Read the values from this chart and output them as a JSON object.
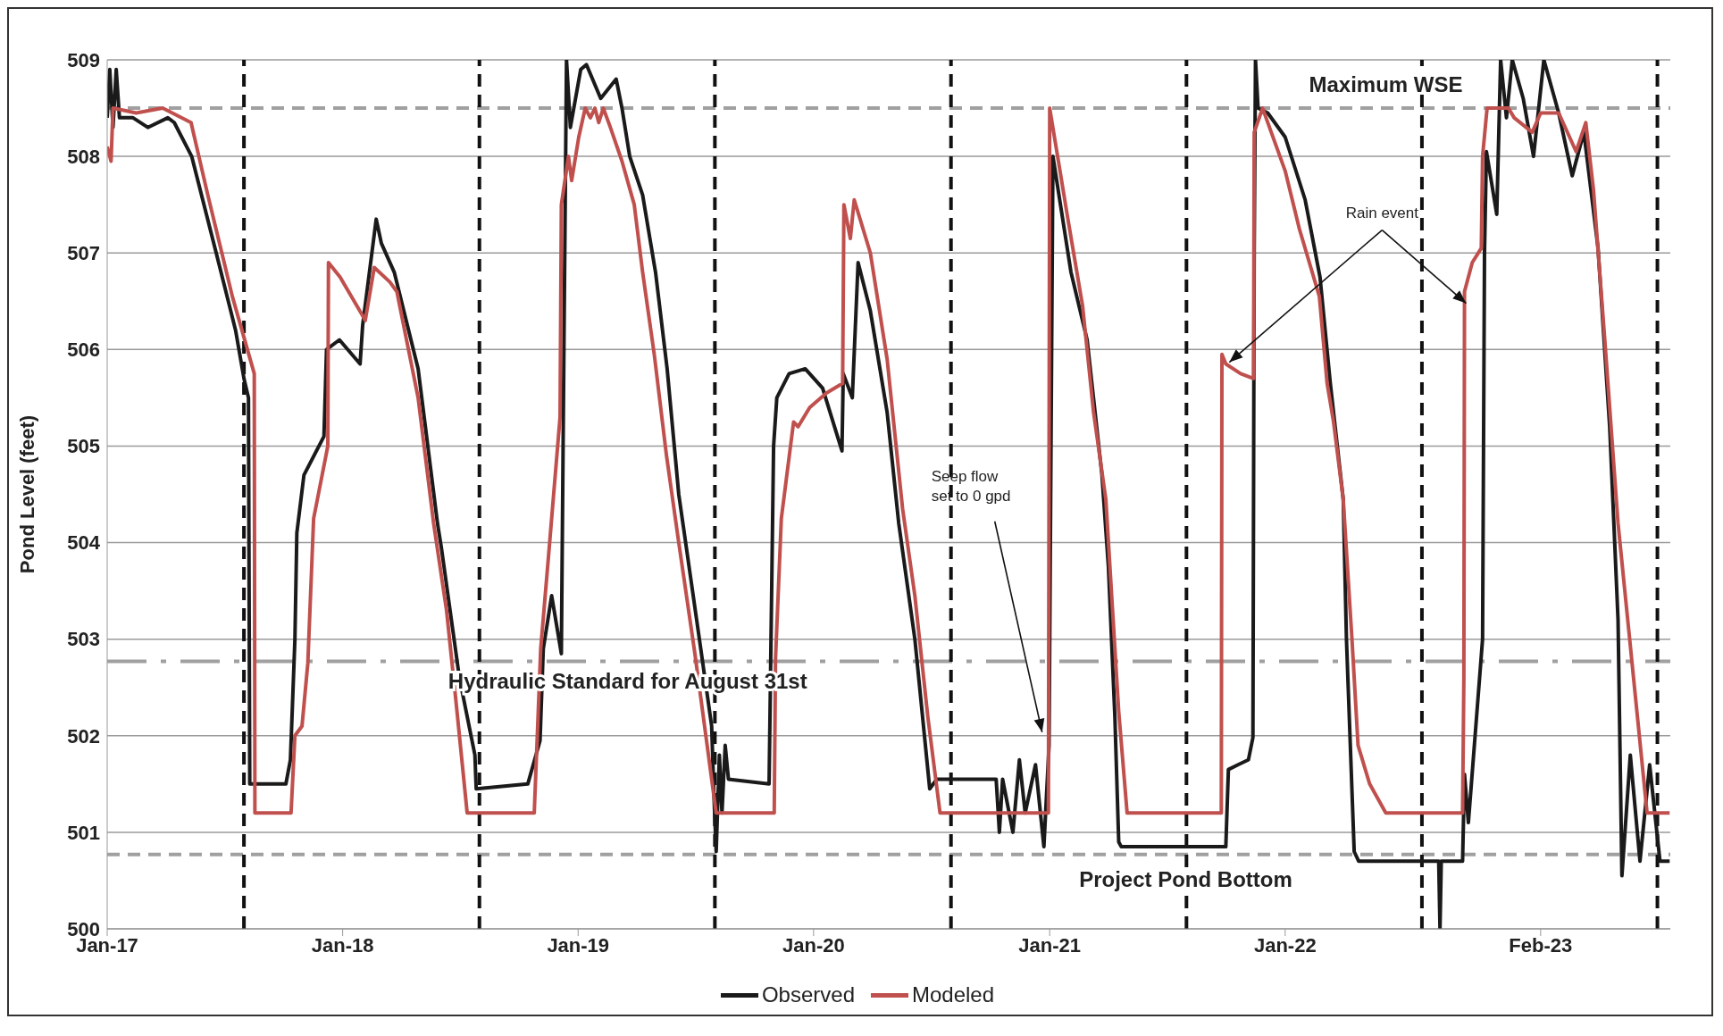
{
  "chart_data": {
    "type": "line",
    "ylabel": "Pond Level (feet)",
    "xlim": [
      "2017-01-01",
      "2023-08-21"
    ],
    "xticks": [
      {
        "value": "2017-01-01",
        "label": "Jan-17"
      },
      {
        "value": "2018-01-01",
        "label": "Jan-18"
      },
      {
        "value": "2019-01-01",
        "label": "Jan-19"
      },
      {
        "value": "2020-01-01",
        "label": "Jan-20"
      },
      {
        "value": "2021-01-01",
        "label": "Jan-21"
      },
      {
        "value": "2022-01-01",
        "label": "Jan-22"
      },
      {
        "value": "2023-02-01",
        "label": "Feb-23"
      }
    ],
    "ylim": [
      500,
      509
    ],
    "yticks": [
      500,
      501,
      502,
      503,
      504,
      505,
      506,
      507,
      508,
      509
    ],
    "grid": "y",
    "legend": "bottom",
    "marker": "none",
    "line_style": "solid",
    "series": [
      {
        "name": "Observed",
        "color": "#1a1a1a",
        "x": [
          "2017-01-01",
          "2017-01-05",
          "2017-01-10",
          "2017-01-15",
          "2017-01-20",
          "2017-02-10",
          "2017-03-05",
          "2017-04-05",
          "2017-04-15",
          "2017-05-12",
          "2017-06-19",
          "2017-07-19",
          "2017-08-01",
          "2017-08-08",
          "2017-08-10",
          "2017-10-05",
          "2017-10-12",
          "2017-10-19",
          "2017-10-22",
          "2017-11-02",
          "2017-12-03",
          "2017-12-07",
          "2017-12-27",
          "2018-01-28",
          "2018-02-01",
          "2018-02-22",
          "2018-03-02",
          "2018-03-22",
          "2018-04-28",
          "2018-05-28",
          "2018-06-03",
          "2018-07-01",
          "2018-07-25",
          "2018-07-27",
          "2018-10-15",
          "2018-11-03",
          "2018-11-08",
          "2018-11-21",
          "2018-12-06",
          "2018-12-10",
          "2018-12-14",
          "2018-12-20",
          "2019-01-05",
          "2019-01-14",
          "2019-02-05",
          "2019-03-01",
          "2019-03-10",
          "2019-03-22",
          "2019-04-11",
          "2019-05-01",
          "2019-05-19",
          "2019-06-06",
          "2019-07-08",
          "2019-07-27",
          "2019-07-31",
          "2019-08-03",
          "2019-08-08",
          "2019-08-12",
          "2019-08-17",
          "2019-08-22",
          "2019-10-24",
          "2019-10-31",
          "2019-11-05",
          "2019-11-24",
          "2019-12-19",
          "2020-01-15",
          "2020-02-14",
          "2020-02-16",
          "2020-03-01",
          "2020-03-10",
          "2020-03-29",
          "2020-04-24",
          "2020-05-12",
          "2020-06-06",
          "2020-06-29",
          "2020-07-10",
          "2020-10-10",
          "2020-10-15",
          "2020-10-20",
          "2020-11-05",
          "2020-11-15",
          "2020-11-24",
          "2020-12-10",
          "2020-12-23",
          "2020-12-31",
          "2021-01-06",
          "2021-02-03",
          "2021-02-28",
          "2021-03-23",
          "2021-04-02",
          "2021-04-12",
          "2021-04-18",
          "2021-04-22",
          "2021-10-01",
          "2021-10-05",
          "2021-10-20",
          "2021-11-05",
          "2021-11-12",
          "2021-11-14",
          "2021-11-16",
          "2021-11-20",
          "2021-12-05",
          "2022-01-01",
          "2022-02-01",
          "2022-02-24",
          "2022-03-12",
          "2022-04-01",
          "2022-04-06",
          "2022-04-18",
          "2022-04-25",
          "2022-08-27",
          "2022-08-29",
          "2022-08-31",
          "2022-10-03",
          "2022-10-06",
          "2022-10-12",
          "2022-11-03",
          "2022-11-06",
          "2022-11-09",
          "2022-11-25",
          "2022-12-01",
          "2022-12-10",
          "2022-12-19",
          "2023-01-05",
          "2023-01-21",
          "2023-02-06",
          "2023-03-01",
          "2023-03-22",
          "2023-04-09",
          "2023-05-01",
          "2023-05-19",
          "2023-06-01",
          "2023-06-07",
          "2023-06-20",
          "2023-07-05",
          "2023-07-20",
          "2023-08-05",
          "2023-08-20"
        ],
        "values": [
          508.4,
          508.9,
          508.3,
          508.9,
          508.4,
          508.4,
          508.3,
          508.4,
          508.35,
          508.0,
          507.0,
          506.2,
          505.7,
          505.5,
          501.5,
          501.5,
          501.75,
          503.0,
          504.1,
          504.7,
          505.1,
          506.0,
          506.1,
          505.85,
          506.25,
          507.35,
          507.1,
          506.8,
          505.8,
          504.2,
          503.95,
          502.6,
          501.8,
          501.45,
          501.5,
          501.95,
          502.9,
          503.45,
          502.85,
          506.0,
          509.0,
          508.3,
          508.9,
          508.95,
          508.6,
          508.8,
          508.5,
          508.0,
          507.6,
          506.8,
          505.8,
          504.5,
          503.0,
          502.1,
          501.3,
          500.8,
          501.8,
          501.2,
          501.9,
          501.55,
          501.5,
          505.0,
          505.5,
          505.75,
          505.8,
          505.6,
          504.95,
          505.75,
          505.5,
          506.9,
          506.4,
          505.35,
          504.2,
          503.0,
          501.45,
          501.55,
          501.55,
          501.0,
          501.55,
          501.0,
          501.75,
          501.2,
          501.7,
          500.85,
          501.9,
          508.0,
          506.8,
          506.1,
          504.7,
          503.75,
          502.2,
          500.9,
          500.85,
          500.85,
          501.65,
          501.7,
          501.75,
          501.98,
          507.0,
          509.0,
          508.5,
          508.45,
          508.2,
          507.55,
          506.75,
          505.65,
          504.45,
          503.0,
          500.8,
          500.7,
          500.7,
          500.0,
          500.7,
          500.7,
          501.6,
          501.1,
          503.0,
          507.0,
          508.05,
          507.4,
          509.0,
          508.4,
          509.0,
          508.6,
          508.0,
          509.0,
          508.45,
          507.8,
          508.25,
          507.05,
          505.2,
          503.2,
          500.55,
          501.8,
          500.7,
          501.7,
          500.7,
          500.7
        ]
      },
      {
        "name": "Modeled",
        "color": "#c0504d",
        "x": [
          "2017-01-01",
          "2017-01-07",
          "2017-01-10",
          "2017-02-15",
          "2017-03-28",
          "2017-05-11",
          "2017-06-06",
          "2017-07-14",
          "2017-08-17",
          "2017-08-18",
          "2017-10-13",
          "2017-10-19",
          "2017-10-30",
          "2017-11-08",
          "2017-11-17",
          "2017-12-09",
          "2017-12-10",
          "2017-12-28",
          "2018-02-01",
          "2018-02-05",
          "2018-02-19",
          "2018-03-15",
          "2018-03-26",
          "2018-04-28",
          "2018-05-22",
          "2018-06-11",
          "2018-06-25",
          "2018-07-13",
          "2018-10-25",
          "2018-11-04",
          "2018-11-16",
          "2018-12-04",
          "2018-12-06",
          "2018-12-17",
          "2018-12-22",
          "2019-01-02",
          "2019-01-12",
          "2019-01-20",
          "2019-01-27",
          "2019-02-02",
          "2019-02-09",
          "2019-02-20",
          "2019-03-10",
          "2019-03-29",
          "2019-04-11",
          "2019-04-29",
          "2019-05-18",
          "2019-06-06",
          "2019-07-01",
          "2019-08-03",
          "2019-11-01",
          "2019-11-03",
          "2019-11-12",
          "2019-12-01",
          "2019-12-08",
          "2019-12-26",
          "2020-01-21",
          "2020-02-15",
          "2020-02-17",
          "2020-02-27",
          "2020-03-04",
          "2020-03-29",
          "2020-04-24",
          "2020-05-18",
          "2020-06-06",
          "2020-06-26",
          "2020-07-15",
          "2020-12-30",
          "2021-01-01",
          "2021-01-28",
          "2021-02-21",
          "2021-03-10",
          "2021-03-29",
          "2021-04-18",
          "2021-05-01",
          "2021-09-24",
          "2021-09-25",
          "2021-10-01",
          "2021-10-24",
          "2021-11-13",
          "2021-11-14",
          "2021-11-27",
          "2022-01-01",
          "2022-01-23",
          "2022-02-23",
          "2022-03-07",
          "2022-03-17",
          "2022-04-01",
          "2022-04-15",
          "2022-04-24",
          "2022-05-12",
          "2022-06-06",
          "2022-10-03",
          "2022-10-05",
          "2022-10-06",
          "2022-10-18",
          "2022-11-01",
          "2022-11-03",
          "2022-11-10",
          "2022-12-13",
          "2022-12-22",
          "2023-01-19",
          "2023-02-01",
          "2023-03-01",
          "2023-03-28",
          "2023-04-12",
          "2023-04-24",
          "2023-05-12",
          "2023-06-01",
          "2023-06-19",
          "2023-07-16",
          "2023-08-20"
        ],
        "values": [
          508.1,
          507.95,
          508.5,
          508.45,
          508.5,
          508.35,
          507.6,
          506.55,
          505.75,
          501.2,
          501.2,
          502.0,
          502.1,
          502.75,
          504.25,
          505.0,
          506.9,
          506.75,
          506.35,
          506.3,
          506.85,
          506.7,
          506.6,
          505.5,
          504.2,
          503.3,
          502.4,
          501.2,
          501.2,
          502.9,
          503.85,
          505.3,
          507.5,
          508.0,
          507.75,
          508.2,
          508.5,
          508.4,
          508.5,
          508.35,
          508.5,
          508.3,
          507.95,
          507.5,
          506.8,
          505.95,
          504.9,
          504.0,
          502.85,
          501.2,
          501.2,
          502.8,
          504.25,
          505.25,
          505.2,
          505.4,
          505.55,
          505.65,
          507.5,
          507.15,
          507.55,
          507.0,
          505.9,
          504.35,
          503.45,
          502.2,
          501.2,
          501.2,
          508.5,
          507.4,
          506.45,
          505.35,
          504.45,
          502.25,
          501.2,
          501.2,
          505.95,
          505.85,
          505.75,
          505.7,
          508.25,
          508.5,
          507.85,
          507.25,
          506.55,
          505.65,
          505.25,
          504.45,
          502.95,
          501.9,
          501.5,
          501.2,
          501.2,
          502.6,
          506.6,
          506.9,
          507.05,
          508.0,
          508.5,
          508.5,
          508.4,
          508.25,
          508.45,
          508.45,
          508.05,
          508.35,
          507.65,
          506.05,
          504.2,
          503.0,
          501.2,
          501.2
        ]
      }
    ],
    "ref_lines": [
      {
        "axis": "y",
        "value": 508.5,
        "label": "Maximum WSE",
        "color": "#a0a0a0",
        "line_style": "dashed"
      },
      {
        "axis": "y",
        "value": 502.77,
        "label": "Hydraulic Standard for August 31st",
        "color": "#a0a0a0",
        "line_style": "dashdot"
      },
      {
        "axis": "y",
        "value": 500.77,
        "label": "Project Pond Bottom",
        "color": "#a0a0a0",
        "line_style": "dashed"
      },
      {
        "axis": "x",
        "value": "2017-08-01",
        "color": "#111111",
        "line_style": "dashed"
      },
      {
        "axis": "x",
        "value": "2018-08-01",
        "color": "#111111",
        "line_style": "dashed"
      },
      {
        "axis": "x",
        "value": "2019-08-01",
        "color": "#111111",
        "line_style": "dashed"
      },
      {
        "axis": "x",
        "value": "2020-08-01",
        "color": "#111111",
        "line_style": "dashed"
      },
      {
        "axis": "x",
        "value": "2021-08-01",
        "color": "#111111",
        "line_style": "dashed"
      },
      {
        "axis": "x",
        "value": "2022-08-01",
        "color": "#111111",
        "line_style": "dashed"
      },
      {
        "axis": "x",
        "value": "2023-08-01",
        "color": "#111111",
        "line_style": "dashed"
      }
    ],
    "annotations": [
      {
        "text": "Seep flow\nset to 0 gpd",
        "x": "2020-12-23",
        "y": 502.0
      },
      {
        "text": "Rain event",
        "x": "2021-10-01",
        "y": 505.85
      }
    ]
  }
}
